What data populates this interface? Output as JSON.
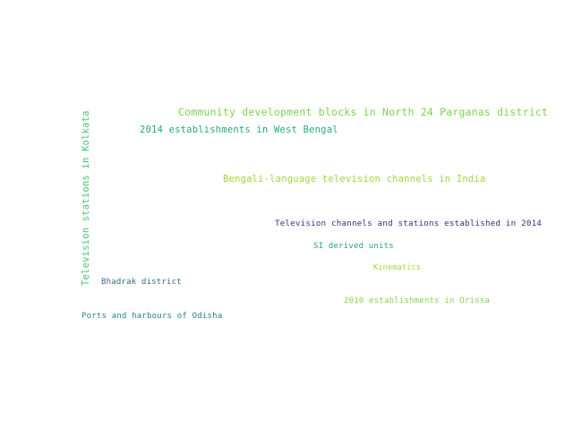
{
  "words": [
    {
      "text": "Community development blocks in North 24 Parganas district",
      "color": "#7ad34f"
    },
    {
      "text": "2014 establishments in West Bengal",
      "color": "#22a884"
    },
    {
      "text": "Television stations in Kolkata",
      "color": "#4ac16d"
    },
    {
      "text": "Bengali-language television channels in India",
      "color": "#9bd93c"
    },
    {
      "text": "Television channels and stations established in 2014",
      "color": "#482878"
    },
    {
      "text": "SI derived units",
      "color": "#2a9d8f"
    },
    {
      "text": "Kinematics",
      "color": "#a0da39"
    },
    {
      "text": "Bhadrak district",
      "color": "#31688e"
    },
    {
      "text": "2010 establishments in Orissa",
      "color": "#86d549"
    },
    {
      "text": "Ports and harbours of Odisha",
      "color": "#26828e"
    }
  ]
}
